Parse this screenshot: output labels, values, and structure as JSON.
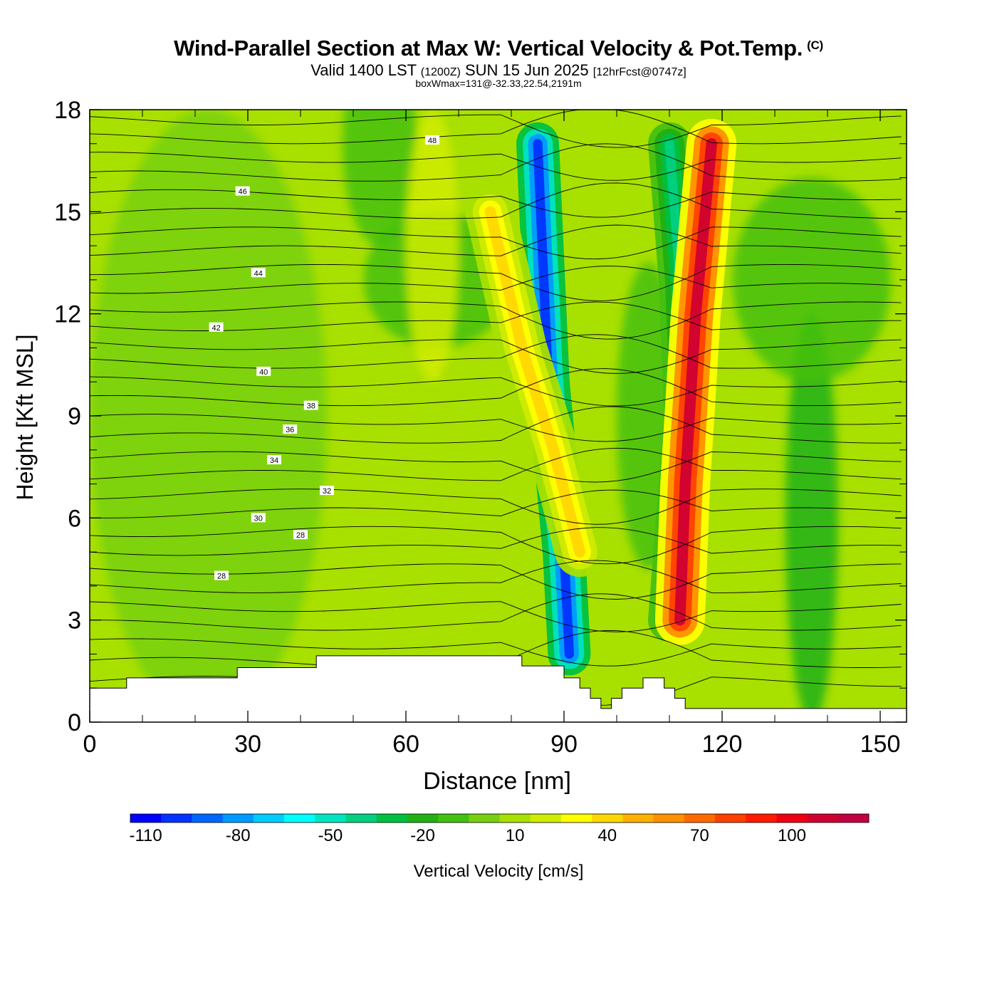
{
  "header": {
    "title": "Wind-Parallel Section at Max W: Vertical Velocity & Pot.Temp.",
    "copyright": "(C)",
    "subtitle_main": "Valid 1400 LST",
    "subtitle_utc": "(1200Z)",
    "subtitle_date": "SUN 15 Jun 2025",
    "subtitle_fcst": "[12hrFcst@0747z]",
    "subnote": "boxWmax=131@-32.33,22.54,2191m"
  },
  "chart_data": {
    "type": "heatmap",
    "title": "Wind-Parallel Section at Max W: Vertical Velocity & Pot.Temp.",
    "xlabel": "Distance [nm]",
    "ylabel": "Height [Kft MSL]",
    "xlim": [
      0,
      155
    ],
    "ylim": [
      0,
      18
    ],
    "x_ticks": [
      "0",
      "30",
      "60",
      "90",
      "120",
      "150"
    ],
    "y_ticks": [
      "0",
      "3",
      "6",
      "9",
      "12",
      "15",
      "18"
    ],
    "colorbar": {
      "label": "Vertical Velocity [cm/s]",
      "levels": [
        -115,
        -105,
        -95,
        -85,
        -75,
        -65,
        -55,
        -45,
        -35,
        -25,
        -15,
        -5,
        5,
        15,
        25,
        35,
        45,
        55,
        65,
        75,
        85,
        95,
        105,
        115,
        125
      ],
      "colors": [
        "#0000ff",
        "#0033ff",
        "#0066ff",
        "#0099ff",
        "#00ccff",
        "#00ffff",
        "#00e5c0",
        "#00d080",
        "#00c040",
        "#22b014",
        "#44c010",
        "#77d010",
        "#a8e000",
        "#d0ec00",
        "#ffff00",
        "#ffd700",
        "#ffb000",
        "#ff9000",
        "#ff6a00",
        "#ff4000",
        "#ff1a00",
        "#ee0010",
        "#d00030",
        "#c00040"
      ],
      "tick_labels": [
        "-110",
        "-80",
        "-50",
        "-20",
        "10",
        "40",
        "70",
        "100"
      ]
    },
    "terrain_top_kft": [
      [
        0,
        1.0
      ],
      [
        7,
        1.3
      ],
      [
        28,
        1.6
      ],
      [
        43,
        1.95
      ],
      [
        82,
        1.65
      ],
      [
        90,
        1.3
      ],
      [
        93,
        1.0
      ],
      [
        95,
        0.7
      ],
      [
        97,
        0.4
      ],
      [
        99,
        0.7
      ],
      [
        101,
        1.0
      ],
      [
        105,
        1.3
      ],
      [
        109,
        1.0
      ],
      [
        111,
        0.7
      ],
      [
        113,
        0.4
      ],
      [
        155,
        0.4
      ]
    ],
    "updraft_bands": [
      {
        "name": "upper band",
        "points": [
          [
            76,
            15
          ],
          [
            82,
            11
          ],
          [
            88,
            8
          ],
          [
            93,
            5
          ]
        ],
        "w_cm_s": 40
      },
      {
        "name": "east band",
        "points": [
          [
            118,
            17
          ],
          [
            115,
            12
          ],
          [
            113,
            7
          ],
          [
            112,
            3
          ]
        ],
        "w_cm_s": 110
      }
    ],
    "downdraft_bands": [
      {
        "points": [
          [
            85,
            17
          ],
          [
            87,
            10
          ],
          [
            90,
            5
          ],
          [
            91,
            2
          ]
        ],
        "w_cm_s": -105
      },
      {
        "points": [
          [
            110,
            17
          ],
          [
            112,
            13
          ],
          [
            113,
            9
          ],
          [
            110,
            3
          ]
        ],
        "w_cm_s": -40
      }
    ],
    "theta_contours": [
      {
        "label": "28",
        "height_kft": 4.3
      },
      {
        "label": "28",
        "height_kft": 5.5
      },
      {
        "label": "30",
        "height_kft": 6.0
      },
      {
        "label": "32",
        "height_kft": 6.8
      },
      {
        "label": "34",
        "height_kft": 7.7
      },
      {
        "label": "36",
        "height_kft": 8.6
      },
      {
        "label": "38",
        "height_kft": 9.3
      },
      {
        "label": "40",
        "height_kft": 10.3
      },
      {
        "label": "42",
        "height_kft": 11.6
      },
      {
        "label": "44",
        "height_kft": 13.2
      },
      {
        "label": "46",
        "height_kft": 15.6
      },
      {
        "label": "48",
        "height_kft": 17.1
      }
    ]
  }
}
